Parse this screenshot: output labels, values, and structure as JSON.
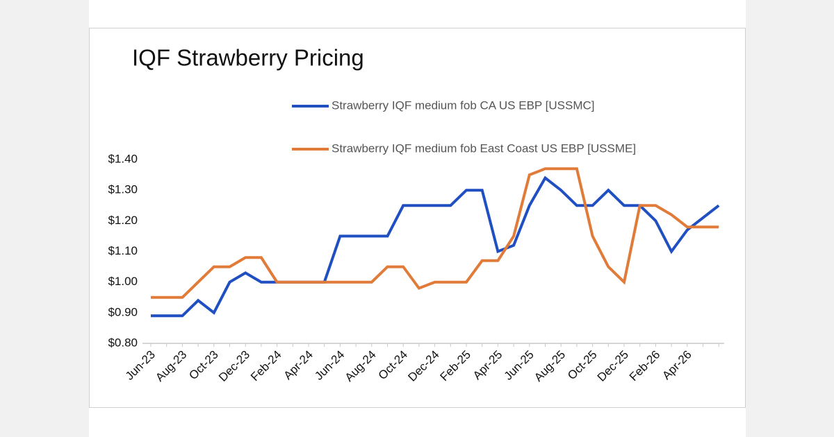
{
  "chart_data": {
    "type": "line",
    "title": "IQF Strawberry Pricing",
    "categories": [
      "Jun-23",
      null,
      "Aug-23",
      null,
      "Oct-23",
      null,
      "Dec-23",
      null,
      "Feb-24",
      null,
      "Apr-24",
      null,
      "Jun-24",
      null,
      "Aug-24",
      null,
      "Oct-24",
      null,
      "Dec-24",
      null,
      "Feb-25",
      null,
      "Apr-25",
      null,
      "Jun-25",
      null,
      "Aug-25",
      null,
      "Oct-25",
      null,
      "Dec-25",
      null,
      "Feb-26",
      null,
      "Apr-26",
      null,
      null
    ],
    "series": [
      {
        "name": "Strawberry IQF medium fob CA US EBP [USSMC]",
        "color": "#1f4fc1",
        "values": [
          0.89,
          0.89,
          0.89,
          0.94,
          0.9,
          1.0,
          1.03,
          1.0,
          1.0,
          1.0,
          1.0,
          1.0,
          1.15,
          1.15,
          1.15,
          1.15,
          1.25,
          1.25,
          1.25,
          1.25,
          1.3,
          1.3,
          1.1,
          1.12,
          1.25,
          1.34,
          1.3,
          1.25,
          1.25,
          1.3,
          1.25,
          1.25,
          1.2,
          1.1,
          1.17,
          1.21,
          1.25
        ]
      },
      {
        "name": "Strawberry IQF medium fob East Coast US EBP [USSME]",
        "color": "#e07b39",
        "values": [
          0.95,
          0.95,
          0.95,
          1.0,
          1.05,
          1.05,
          1.08,
          1.08,
          1.0,
          1.0,
          1.0,
          1.0,
          1.0,
          1.0,
          1.0,
          1.05,
          1.05,
          0.98,
          1.0,
          1.0,
          1.0,
          1.07,
          1.07,
          1.15,
          1.35,
          1.37,
          1.37,
          1.37,
          1.15,
          1.05,
          1.0,
          1.25,
          1.25,
          1.22,
          1.18,
          1.18,
          1.18
        ]
      }
    ],
    "ylim": [
      0.8,
      1.4
    ],
    "yticks": [
      {
        "value": 0.8,
        "label": "$0.80"
      },
      {
        "value": 0.9,
        "label": "$0.90"
      },
      {
        "value": 1.0,
        "label": "$1.00"
      },
      {
        "value": 1.1,
        "label": "$1.10"
      },
      {
        "value": 1.2,
        "label": "$1.20"
      },
      {
        "value": 1.3,
        "label": "$1.30"
      },
      {
        "value": 1.4,
        "label": "$1.40"
      }
    ],
    "grid": false
  }
}
